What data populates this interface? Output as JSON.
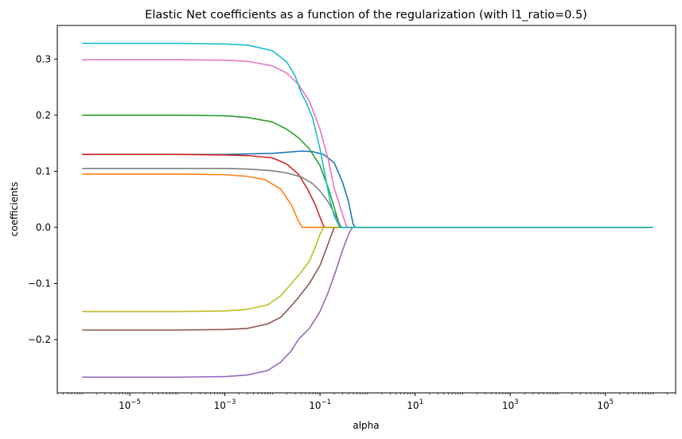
{
  "chart_data": {
    "type": "line",
    "title": "Elastic Net coefficients as a function of the regularization (with l1_ratio=0.5)",
    "xlabel": "alpha",
    "ylabel": "coefficients",
    "xscale": "log",
    "xlim": [
      3e-07,
      3000000.0
    ],
    "ylim": [
      -0.295,
      0.36
    ],
    "grid": false,
    "x_ticks": [
      {
        "value": 1e-05,
        "base": "10",
        "exp": "−5"
      },
      {
        "value": 0.001,
        "base": "10",
        "exp": "−3"
      },
      {
        "value": 0.1,
        "base": "10",
        "exp": "−1"
      },
      {
        "value": 10.0,
        "base": "10",
        "exp": "1"
      },
      {
        "value": 1000.0,
        "base": "10",
        "exp": "3"
      },
      {
        "value": 100000.0,
        "base": "10",
        "exp": "5"
      }
    ],
    "y_ticks": [
      {
        "value": 0.3,
        "label": "0.3"
      },
      {
        "value": 0.2,
        "label": "0.2"
      },
      {
        "value": 0.1,
        "label": "0.1"
      },
      {
        "value": 0.0,
        "label": "0.0"
      },
      {
        "value": -0.1,
        "label": "−0.1"
      },
      {
        "value": -0.2,
        "label": "−0.2"
      }
    ],
    "series": [
      {
        "color": "#1f77b4",
        "points": [
          [
            1e-06,
            0.13
          ],
          [
            0.0001,
            0.13
          ],
          [
            0.001,
            0.13
          ],
          [
            0.003,
            0.131
          ],
          [
            0.01,
            0.132
          ],
          [
            0.02,
            0.134
          ],
          [
            0.04,
            0.136
          ],
          [
            0.07,
            0.135
          ],
          [
            0.12,
            0.13
          ],
          [
            0.2,
            0.115
          ],
          [
            0.3,
            0.08
          ],
          [
            0.4,
            0.045
          ],
          [
            0.5,
            0.005
          ],
          [
            0.55,
            0.0
          ],
          [
            1000000.0,
            0.0
          ]
        ]
      },
      {
        "color": "#ff7f0e",
        "points": [
          [
            1e-06,
            0.095
          ],
          [
            0.0001,
            0.095
          ],
          [
            0.001,
            0.094
          ],
          [
            0.003,
            0.091
          ],
          [
            0.007,
            0.085
          ],
          [
            0.015,
            0.068
          ],
          [
            0.025,
            0.04
          ],
          [
            0.035,
            0.012
          ],
          [
            0.042,
            0.0
          ],
          [
            1000000.0,
            0.0
          ]
        ]
      },
      {
        "color": "#2ca02c",
        "points": [
          [
            1e-06,
            0.2
          ],
          [
            0.0001,
            0.2
          ],
          [
            0.001,
            0.199
          ],
          [
            0.003,
            0.196
          ],
          [
            0.01,
            0.188
          ],
          [
            0.02,
            0.175
          ],
          [
            0.035,
            0.16
          ],
          [
            0.06,
            0.14
          ],
          [
            0.1,
            0.11
          ],
          [
            0.15,
            0.07
          ],
          [
            0.2,
            0.035
          ],
          [
            0.25,
            0.008
          ],
          [
            0.28,
            0.0
          ],
          [
            1000000.0,
            0.0
          ]
        ]
      },
      {
        "color": "#d62728",
        "points": [
          [
            1e-06,
            0.13
          ],
          [
            0.0001,
            0.13
          ],
          [
            0.001,
            0.129
          ],
          [
            0.003,
            0.128
          ],
          [
            0.01,
            0.124
          ],
          [
            0.02,
            0.113
          ],
          [
            0.035,
            0.095
          ],
          [
            0.055,
            0.068
          ],
          [
            0.08,
            0.04
          ],
          [
            0.1,
            0.018
          ],
          [
            0.12,
            0.002
          ],
          [
            0.13,
            0.0
          ],
          [
            1000000.0,
            0.0
          ]
        ]
      },
      {
        "color": "#9467bd",
        "points": [
          [
            1e-06,
            -0.267
          ],
          [
            0.0001,
            -0.267
          ],
          [
            0.001,
            -0.266
          ],
          [
            0.003,
            -0.263
          ],
          [
            0.008,
            -0.255
          ],
          [
            0.015,
            -0.24
          ],
          [
            0.025,
            -0.22
          ],
          [
            0.035,
            -0.2
          ],
          [
            0.06,
            -0.18
          ],
          [
            0.1,
            -0.15
          ],
          [
            0.15,
            -0.115
          ],
          [
            0.22,
            -0.075
          ],
          [
            0.3,
            -0.04
          ],
          [
            0.4,
            -0.012
          ],
          [
            0.48,
            0.0
          ],
          [
            1000000.0,
            0.0
          ]
        ]
      },
      {
        "color": "#8c564b",
        "points": [
          [
            1e-06,
            -0.183
          ],
          [
            0.0001,
            -0.183
          ],
          [
            0.001,
            -0.182
          ],
          [
            0.003,
            -0.18
          ],
          [
            0.008,
            -0.172
          ],
          [
            0.015,
            -0.16
          ],
          [
            0.025,
            -0.14
          ],
          [
            0.035,
            -0.125
          ],
          [
            0.06,
            -0.1
          ],
          [
            0.1,
            -0.068
          ],
          [
            0.14,
            -0.035
          ],
          [
            0.18,
            -0.01
          ],
          [
            0.2,
            0.0
          ],
          [
            1000000.0,
            0.0
          ]
        ]
      },
      {
        "color": "#e377c2",
        "points": [
          [
            1e-06,
            0.299
          ],
          [
            0.0001,
            0.299
          ],
          [
            0.001,
            0.298
          ],
          [
            0.003,
            0.296
          ],
          [
            0.01,
            0.288
          ],
          [
            0.02,
            0.275
          ],
          [
            0.035,
            0.255
          ],
          [
            0.06,
            0.225
          ],
          [
            0.1,
            0.175
          ],
          [
            0.15,
            0.12
          ],
          [
            0.2,
            0.07
          ],
          [
            0.28,
            0.03
          ],
          [
            0.35,
            0.005
          ],
          [
            0.38,
            0.0
          ],
          [
            1000000.0,
            0.0
          ]
        ]
      },
      {
        "color": "#7f7f7f",
        "points": [
          [
            1e-06,
            0.105
          ],
          [
            0.0001,
            0.105
          ],
          [
            0.001,
            0.105
          ],
          [
            0.003,
            0.104
          ],
          [
            0.01,
            0.101
          ],
          [
            0.02,
            0.097
          ],
          [
            0.04,
            0.09
          ],
          [
            0.07,
            0.078
          ],
          [
            0.1,
            0.065
          ],
          [
            0.15,
            0.045
          ],
          [
            0.2,
            0.025
          ],
          [
            0.25,
            0.008
          ],
          [
            0.28,
            0.0
          ],
          [
            1000000.0,
            0.0
          ]
        ]
      },
      {
        "color": "#bcbd22",
        "points": [
          [
            1e-06,
            -0.15
          ],
          [
            0.0001,
            -0.15
          ],
          [
            0.001,
            -0.149
          ],
          [
            0.003,
            -0.146
          ],
          [
            0.008,
            -0.138
          ],
          [
            0.015,
            -0.122
          ],
          [
            0.025,
            -0.1
          ],
          [
            0.04,
            -0.08
          ],
          [
            0.06,
            -0.06
          ],
          [
            0.08,
            -0.035
          ],
          [
            0.1,
            -0.012
          ],
          [
            0.12,
            0.0
          ],
          [
            1000000.0,
            0.0
          ]
        ]
      },
      {
        "color": "#17becf",
        "points": [
          [
            1e-06,
            0.328
          ],
          [
            0.0001,
            0.328
          ],
          [
            0.001,
            0.327
          ],
          [
            0.003,
            0.325
          ],
          [
            0.01,
            0.315
          ],
          [
            0.02,
            0.295
          ],
          [
            0.03,
            0.27
          ],
          [
            0.04,
            0.24
          ],
          [
            0.05,
            0.225
          ],
          [
            0.07,
            0.195
          ],
          [
            0.1,
            0.14
          ],
          [
            0.13,
            0.09
          ],
          [
            0.16,
            0.05
          ],
          [
            0.2,
            0.02
          ],
          [
            0.25,
            0.003
          ],
          [
            0.27,
            0.0
          ],
          [
            1000000.0,
            0.0
          ]
        ]
      }
    ]
  }
}
